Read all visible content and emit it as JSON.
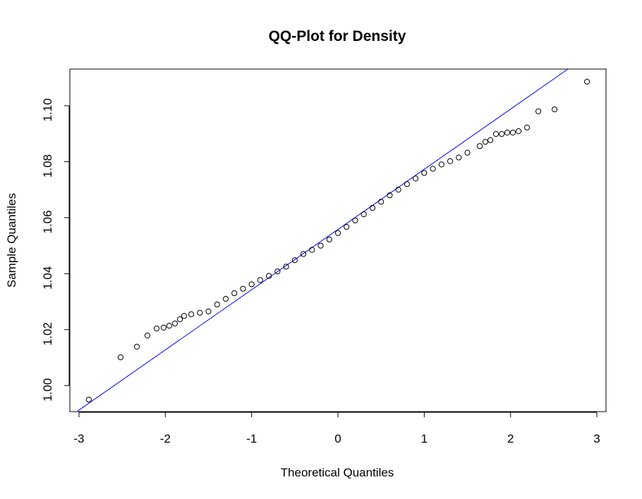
{
  "chart_data": {
    "type": "scatter",
    "title": "QQ-Plot for Density",
    "x_label": "Theoretical Quantiles",
    "y_label": "Sample Quantiles",
    "xlim": [
      -3.106,
      3.106
    ],
    "ylim": [
      0.9907,
      1.1131
    ],
    "xticks": [
      -3,
      -2,
      -1,
      0,
      1,
      2,
      3
    ],
    "yticks": [
      {
        "value": 1,
        "label": "1.00"
      },
      1.02,
      1.04,
      1.06,
      1.08,
      {
        "value": 1.1,
        "label": "1.10"
      }
    ],
    "series": [
      {
        "color": "#000000",
        "x": [
          -2.886,
          -2.518,
          -2.33,
          -2.207,
          -2.101,
          -2.019,
          -1.954,
          -1.888,
          -1.831,
          -1.782,
          -1.7,
          -1.6,
          -1.5,
          -1.4,
          -1.3,
          -1.2,
          -1.1,
          -1.0,
          -0.9,
          -0.8,
          -0.7,
          -0.6,
          -0.5,
          -0.4,
          -0.3,
          -0.2,
          -0.1,
          0,
          0.1,
          0.2,
          0.3,
          0.4,
          0.5,
          0.6,
          0.7,
          0.8,
          0.9,
          1.0,
          1.1,
          1.2,
          1.3,
          1.4,
          1.5,
          1.643,
          1.708,
          1.766,
          1.831,
          1.897,
          1.962,
          2.027,
          2.093,
          2.191,
          2.322,
          2.51,
          2.886
        ],
        "values": [
          0.995,
          1.0101,
          1.0139,
          1.0179,
          1.0204,
          1.0207,
          1.0214,
          1.0222,
          1.0237,
          1.0249,
          1.0255,
          1.026,
          1.0265,
          1.029,
          1.031,
          1.033,
          1.0346,
          1.0362,
          1.0377,
          1.0392,
          1.0408,
          1.0425,
          1.0448,
          1.047,
          1.0485,
          1.05,
          1.0522,
          1.0545,
          1.0567,
          1.059,
          1.0612,
          1.0635,
          1.0657,
          1.068,
          1.07,
          1.072,
          1.074,
          1.076,
          1.0775,
          1.079,
          1.0802,
          1.0815,
          1.0832,
          1.0856,
          1.0871,
          1.0877,
          1.0899,
          1.0899,
          1.0904,
          1.0904,
          1.0909,
          1.0922,
          1.098,
          1.0987,
          1.1086
        ]
      }
    ],
    "reference_line": {
      "color": "#0000ff",
      "x": [
        -3.016,
        2.665
      ],
      "values": [
        0.9909,
        1.1131
      ]
    }
  }
}
